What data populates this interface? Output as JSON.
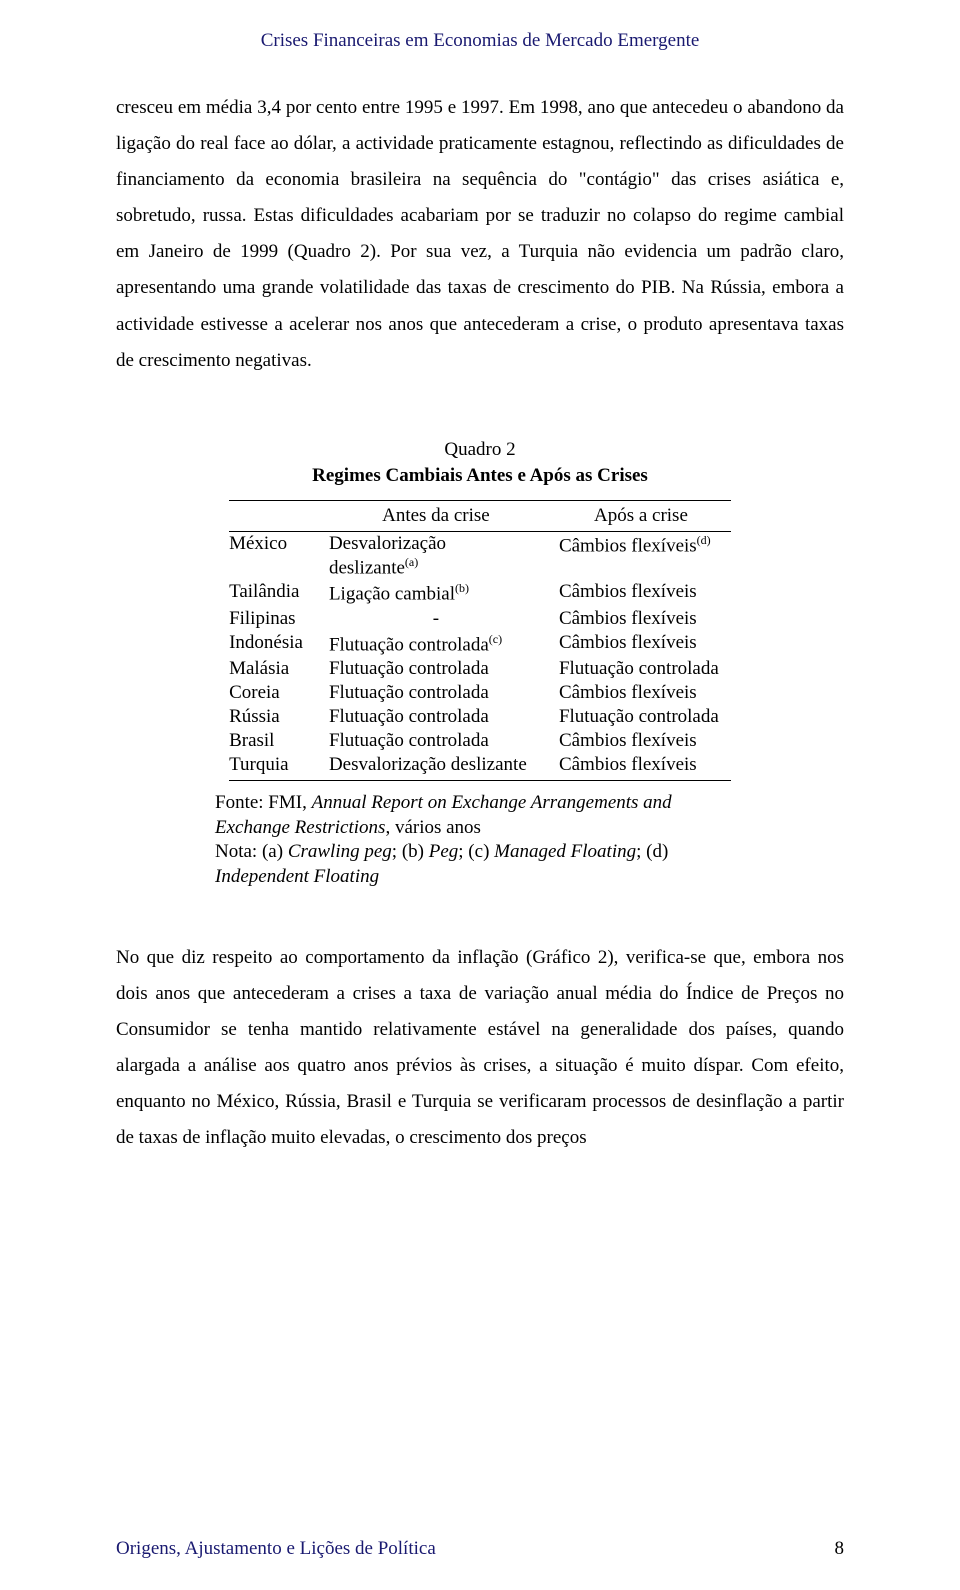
{
  "header": {
    "text": "Crises Financeiras em Economias de Mercado Emergente"
  },
  "paragraph1": "cresceu em média 3,4 por cento entre 1995 e 1997. Em 1998, ano que antecedeu o abandono da ligação do real face ao dólar, a actividade praticamente estagnou, reflectindo as dificuldades de financiamento da economia brasileira na sequência do \"contágio\" das crises asiática e, sobretudo, russa. Estas dificuldades acabariam por se traduzir no colapso do regime cambial em Janeiro de 1999 (Quadro 2). Por sua vez, a Turquia não evidencia um padrão claro, apresentando uma grande volatilidade das taxas de crescimento do PIB. Na Rússia, embora a actividade estivesse a acelerar nos anos que antecederam a crise, o produto apresentava taxas de crescimento negativas.",
  "table": {
    "title_line1": "Quadro 2",
    "title_line2": "Regimes Cambiais Antes e Após as Crises",
    "col_before": "Antes da crise",
    "col_after": "Após a crise",
    "rows": [
      {
        "country": "México",
        "before": "Desvalorização deslizante",
        "before_sup": "(a)",
        "before_multi": true,
        "after": "Câmbios flexíveis",
        "after_sup": "(d)"
      },
      {
        "country": "Tailândia",
        "before": "Ligação cambial",
        "before_sup": "(b)",
        "after": "Câmbios flexíveis"
      },
      {
        "country": "Filipinas",
        "before": "-",
        "before_center": true,
        "after": "Câmbios flexíveis"
      },
      {
        "country": "Indonésia",
        "before": "Flutuação controlada",
        "before_sup": "(c)",
        "after": "Câmbios flexíveis"
      },
      {
        "country": "Malásia",
        "before": "Flutuação controlada",
        "after": "Flutuação controlada"
      },
      {
        "country": "Coreia",
        "before": "Flutuação controlada",
        "after": "Câmbios flexíveis"
      },
      {
        "country": "Rússia",
        "before": "Flutuação controlada",
        "after": "Flutuação controlada"
      },
      {
        "country": "Brasil",
        "before": "Flutuação controlada",
        "after": "Câmbios flexíveis"
      },
      {
        "country": "Turquia",
        "before": "Desvalorização deslizante",
        "after": "Câmbios flexíveis"
      }
    ],
    "source_label": "Fonte: FMI, ",
    "source_italic": "Annual Report on Exchange Arrangements and Exchange Restrictions",
    "source_tail": ", vários anos",
    "notes_label": "Nota: (a) ",
    "notes_a": "Crawling peg",
    "notes_b_label": "; (b) ",
    "notes_b": "Peg",
    "notes_c_label": "; (c) ",
    "notes_c": "Managed Floating",
    "notes_d_label": "; (d) ",
    "notes_d": "Independent Floating"
  },
  "paragraph2": "No que diz respeito ao comportamento da inflação (Gráfico 2), verifica-se que, embora nos dois anos que antecederam a crises a taxa de variação anual média do Índice de Preços no Consumidor se tenha mantido relativamente estável na generalidade dos países, quando alargada a análise aos quatro anos prévios às crises, a situação é muito díspar. Com efeito, enquanto no México, Rússia, Brasil e Turquia se verificaram processos de desinflação a partir de taxas de inflação muito elevadas, o crescimento dos preços",
  "footer": {
    "text": "Origens, Ajustamento e Lições de Política",
    "page": "8"
  }
}
